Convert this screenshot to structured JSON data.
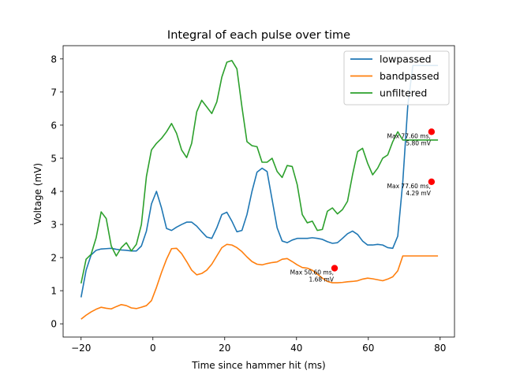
{
  "chart_data": {
    "type": "line",
    "title": "Integral of each pulse over time",
    "xlabel": "Time since hammer hit (ms)",
    "ylabel": "Voltage (mV)",
    "xlim": [
      -25,
      84
    ],
    "ylim": [
      -0.4,
      8.4
    ],
    "xticks": [
      -20,
      0,
      20,
      40,
      60,
      80
    ],
    "yticks": [
      0,
      1,
      2,
      3,
      4,
      5,
      6,
      7,
      8
    ],
    "grid": false,
    "legend": "top-right",
    "x": [
      -20,
      -18.6,
      -17.2,
      -15.8,
      -14.4,
      -13,
      -11.6,
      -10.2,
      -8.8,
      -7.4,
      -6,
      -4.6,
      -3.2,
      -1.8,
      -0.4,
      1,
      2.4,
      3.8,
      5.2,
      6.6,
      8,
      9.4,
      10.8,
      12.2,
      13.6,
      15,
      16.4,
      17.8,
      19.2,
      20.6,
      22,
      23.4,
      24.8,
      26.2,
      27.6,
      29,
      30.4,
      31.8,
      33.2,
      34.6,
      36,
      37.4,
      38.8,
      40.2,
      41.6,
      43,
      44.4,
      45.8,
      47.2,
      48.6,
      50,
      51.4,
      52.8,
      54.2,
      55.6,
      57,
      58.4,
      59.8,
      61.2,
      62.6,
      64,
      65.4,
      66.8,
      68.2,
      69.6,
      71,
      72.4,
      73.8,
      75.2,
      76.6,
      78,
      79.4
    ],
    "series": [
      {
        "name": "lowpassed",
        "color": "#1f77b4",
        "values": [
          0.8,
          1.62,
          2.08,
          2.22,
          2.26,
          2.27,
          2.28,
          2.25,
          2.23,
          2.22,
          2.2,
          2.2,
          2.35,
          2.8,
          3.62,
          4.0,
          3.5,
          2.88,
          2.82,
          2.92,
          3.0,
          3.07,
          3.07,
          2.95,
          2.78,
          2.62,
          2.58,
          2.9,
          3.3,
          3.37,
          3.1,
          2.78,
          2.82,
          3.3,
          4.0,
          4.58,
          4.7,
          4.6,
          3.75,
          2.9,
          2.5,
          2.45,
          2.53,
          2.58,
          2.58,
          2.58,
          2.6,
          2.58,
          2.55,
          2.48,
          2.43,
          2.45,
          2.58,
          2.72,
          2.8,
          2.7,
          2.5,
          2.38,
          2.38,
          2.4,
          2.38,
          2.3,
          2.28,
          2.65,
          4.29,
          6.6,
          7.8,
          7.8,
          7.8,
          7.8,
          7.8,
          7.8
        ]
      },
      {
        "name": "bandpassed",
        "color": "#ff7f0e",
        "values": [
          0.14,
          0.26,
          0.36,
          0.44,
          0.5,
          0.47,
          0.45,
          0.52,
          0.58,
          0.55,
          0.48,
          0.46,
          0.5,
          0.55,
          0.7,
          1.1,
          1.55,
          1.95,
          2.27,
          2.28,
          2.12,
          1.88,
          1.62,
          1.48,
          1.52,
          1.62,
          1.8,
          2.05,
          2.3,
          2.4,
          2.38,
          2.3,
          2.18,
          2.02,
          1.88,
          1.8,
          1.78,
          1.82,
          1.85,
          1.87,
          1.95,
          1.97,
          1.88,
          1.78,
          1.7,
          1.68,
          1.62,
          1.5,
          1.38,
          1.28,
          1.24,
          1.24,
          1.25,
          1.27,
          1.28,
          1.3,
          1.35,
          1.38,
          1.36,
          1.33,
          1.3,
          1.35,
          1.42,
          1.6,
          2.05,
          2.05,
          2.05,
          2.05,
          2.05,
          2.05,
          2.05,
          2.05
        ]
      },
      {
        "name": "unfiltered",
        "color": "#2ca02c",
        "values": [
          1.22,
          1.95,
          2.1,
          2.6,
          3.38,
          3.18,
          2.35,
          2.05,
          2.3,
          2.45,
          2.2,
          2.4,
          3.0,
          4.45,
          5.25,
          5.45,
          5.6,
          5.8,
          6.05,
          5.75,
          5.25,
          5.02,
          5.45,
          6.4,
          6.75,
          6.55,
          6.35,
          6.7,
          7.45,
          7.9,
          7.95,
          7.7,
          6.55,
          5.5,
          5.38,
          5.35,
          4.88,
          4.88,
          5.0,
          4.6,
          4.42,
          4.78,
          4.75,
          4.2,
          3.3,
          3.05,
          3.1,
          2.82,
          2.85,
          3.4,
          3.5,
          3.32,
          3.45,
          3.7,
          4.5,
          5.2,
          5.3,
          4.85,
          4.5,
          4.7,
          5.0,
          5.1,
          5.5,
          5.8,
          5.55,
          5.55,
          5.55,
          5.55,
          5.55,
          5.55,
          5.55,
          5.55
        ]
      }
    ],
    "annotations": [
      {
        "x": 77.6,
        "y": 5.8,
        "color": "#ff0000",
        "line1": "Max 77.60 ms,",
        "line2": "5.80 mV"
      },
      {
        "x": 77.6,
        "y": 4.29,
        "color": "#ff0000",
        "line1": "Max 77.60 ms,",
        "line2": "4.29 mV"
      },
      {
        "x": 50.6,
        "y": 1.68,
        "color": "#ff0000",
        "line1": "Max 50.60 ms,",
        "line2": "1.68 mV"
      }
    ]
  }
}
